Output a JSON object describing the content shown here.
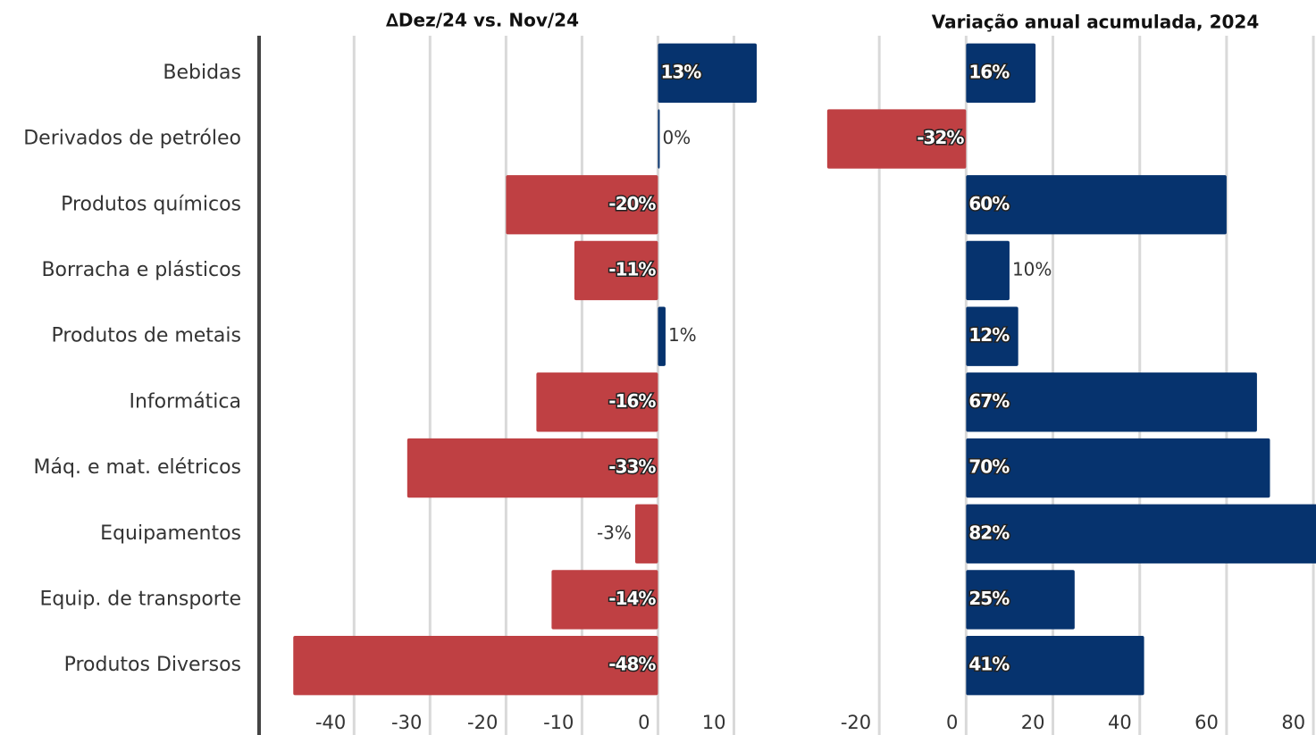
{
  "chart_data": [
    {
      "type": "bar",
      "orientation": "horizontal",
      "title": "∆Dez/24 vs. Nov/24",
      "categories": [
        "Bebidas",
        "Derivados de petróleo",
        "Produtos químicos",
        "Borracha e plásticos",
        "Produtos de metais",
        "Informática",
        "Máq. e mat. elétricos",
        "Equipamentos",
        "Equip. de transporte",
        "Produtos Diversos"
      ],
      "values": [
        13,
        0,
        -20,
        -11,
        1,
        -16,
        -33,
        -3,
        -14,
        -48
      ],
      "value_labels": [
        "13%",
        "0%",
        "-20%",
        "-11%",
        "1%",
        "-16%",
        "-33%",
        "-3%",
        "-14%",
        "-48%"
      ],
      "positive_color": "#06336e",
      "negative_color": "#bf4043",
      "xlim": [
        -52.5,
        17
      ],
      "xticks": [
        -40,
        -30,
        -20,
        -10,
        0,
        10
      ],
      "grid": true
    },
    {
      "type": "bar",
      "orientation": "horizontal",
      "title": "Variação anual acumulada, 2024",
      "values": [
        16,
        -32,
        60,
        10,
        12,
        67,
        70,
        82,
        25,
        41
      ],
      "value_labels": [
        "16%",
        "-32%",
        "60%",
        "10%",
        "12%",
        "67%",
        "70%",
        "82%",
        "25%",
        "41%"
      ],
      "positive_color": "#06336e",
      "negative_color": "#bf4043",
      "xlim": [
        -40,
        80.6
      ],
      "xticks": [
        -20,
        0,
        20,
        40,
        60,
        80
      ],
      "grid": true
    }
  ]
}
